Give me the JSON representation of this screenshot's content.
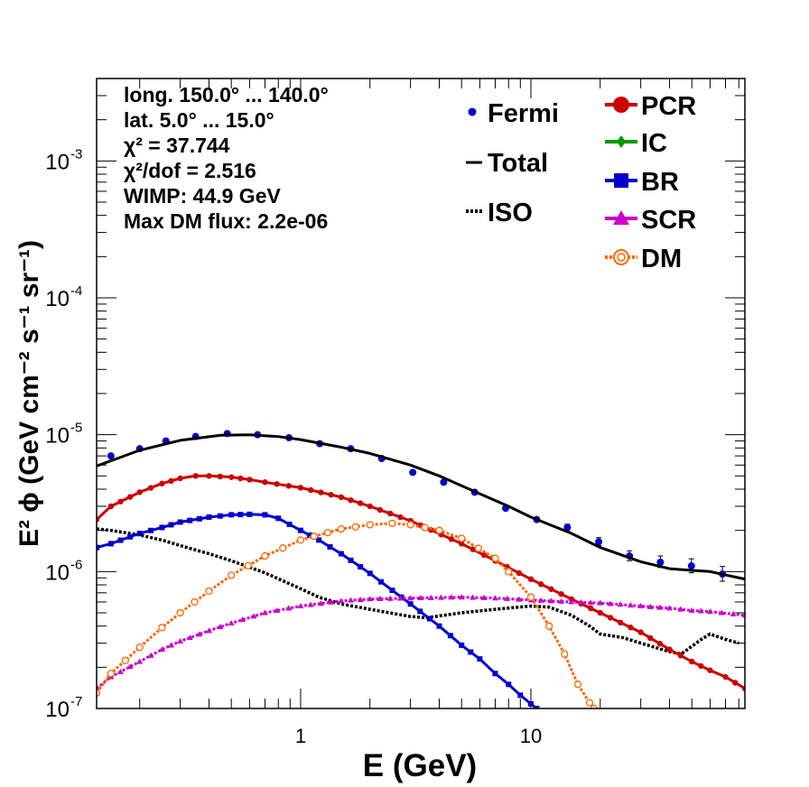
{
  "chart_data": {
    "type": "scatter",
    "x_scale": "log",
    "y_scale": "log",
    "xlim": [
      0.13,
      85
    ],
    "ylim": [
      1e-07,
      0.004
    ],
    "xlabel": "E (GeV)",
    "ylabel": "E² ϕ (GeV cm⁻² s⁻¹ sr⁻¹)",
    "x_ticks": [
      {
        "value": 1,
        "label": "1"
      },
      {
        "value": 10,
        "label": "10"
      }
    ],
    "y_ticks": [
      {
        "value": 1e-07,
        "mant": "10",
        "exp": "-7"
      },
      {
        "value": 1e-06,
        "mant": "10",
        "exp": "-6"
      },
      {
        "value": 1e-05,
        "mant": "10",
        "exp": "-5"
      },
      {
        "value": 0.0001,
        "mant": "10",
        "exp": "-4"
      },
      {
        "value": 0.001,
        "mant": "10",
        "exp": "-3"
      }
    ],
    "info": [
      "long. 150.0° ... 140.0°",
      "lat. 5.0° ... 15.0°",
      "χ² = 37.744",
      "χ²/dof = 2.516",
      "WIMP: 44.9 GeV",
      "Max DM flux: 2.2e-06"
    ],
    "legend": {
      "left": [
        {
          "label": "Fermi",
          "kind": "fermi"
        },
        {
          "label": "Total",
          "kind": "solid"
        },
        {
          "label": "ISO",
          "kind": "dotted"
        }
      ],
      "right": [
        {
          "label": "PCR",
          "kind": "circle",
          "color": "#cc0000"
        },
        {
          "label": "IC",
          "kind": "diamond",
          "color": "#009900"
        },
        {
          "label": "BR",
          "kind": "square",
          "color": "#0000cc"
        },
        {
          "label": "SCR",
          "kind": "triangle",
          "color": "#cc00cc"
        },
        {
          "label": "DM",
          "kind": "opencircle",
          "color": "#ff6600"
        }
      ]
    },
    "series": [
      {
        "name": "Fermi",
        "kind": "points",
        "color": "#0000cc",
        "x": [
          0.15,
          0.2,
          0.26,
          0.35,
          0.48,
          0.65,
          0.89,
          1.21,
          1.65,
          2.25,
          3.07,
          4.18,
          5.7,
          7.77,
          10.6,
          14.4,
          19.7,
          26.8,
          36.5,
          49.8,
          67.9
        ],
        "y": [
          7e-06,
          7.9e-06,
          9e-06,
          9.7e-06,
          1.02e-05,
          1e-05,
          9.5e-06,
          8.6e-06,
          7.9e-06,
          6.7e-06,
          5.3e-06,
          4.5e-06,
          3.8e-06,
          2.9e-06,
          2.4e-06,
          2.1e-06,
          1.65e-06,
          1.3e-06,
          1.17e-06,
          1.1e-06,
          9.6e-07
        ],
        "err_lo": [
          7e-06,
          7.9e-06,
          9e-06,
          9.7e-06,
          1.02e-05,
          1e-05,
          9.5e-06,
          8.6e-06,
          7.9e-06,
          6.7e-06,
          5.3e-06,
          4.5e-06,
          3.8e-06,
          2.83e-06,
          2.33e-06,
          1.98e-06,
          1.55e-06,
          1.2e-06,
          1.07e-06,
          9.8e-07,
          8.5e-07
        ],
        "err_hi": [
          7e-06,
          7.9e-06,
          9e-06,
          9.7e-06,
          1.02e-05,
          1e-05,
          9.5e-06,
          8.6e-06,
          7.9e-06,
          6.7e-06,
          5.3e-06,
          4.5e-06,
          3.8e-06,
          2.97e-06,
          2.47e-06,
          2.22e-06,
          1.77e-06,
          1.42e-06,
          1.3e-06,
          1.24e-06,
          1.09e-06
        ]
      },
      {
        "name": "Total",
        "kind": "solid",
        "color": "#000000",
        "x": [
          0.13,
          0.2,
          0.3,
          0.45,
          0.6,
          0.8,
          1.0,
          1.5,
          2.0,
          3.0,
          4.0,
          6.0,
          8.0,
          10.0,
          15.0,
          20.0,
          30.0,
          40.0,
          50.0,
          60.0,
          85.0
        ],
        "y": [
          5.9e-06,
          7.7e-06,
          9.1e-06,
          9.9e-06,
          1e-05,
          9.7e-06,
          9.2e-06,
          8.1e-06,
          7.3e-06,
          6e-06,
          5e-06,
          3.7e-06,
          3e-06,
          2.5e-06,
          1.9e-06,
          1.5e-06,
          1.18e-06,
          1.05e-06,
          1.02e-06,
          1e-06,
          8.8e-07
        ]
      },
      {
        "name": "ISO",
        "kind": "dotted",
        "color": "#000000",
        "x": [
          0.13,
          0.15,
          0.2,
          0.25,
          0.3,
          0.4,
          0.5,
          0.7,
          1.0,
          1.2,
          1.5,
          2.0,
          3.0,
          3.5,
          5.0,
          7.0,
          10.0,
          12.0,
          15.0,
          18.0,
          20.0,
          25.0,
          30.0,
          40.0,
          45.0,
          55.0,
          60.0,
          70.0,
          80.0
        ],
        "y": [
          2.05e-06,
          2e-06,
          1.85e-06,
          1.7e-06,
          1.55e-06,
          1.35e-06,
          1.2e-06,
          9.8e-07,
          7.5e-07,
          6.5e-07,
          5.8e-07,
          5.3e-07,
          4.7e-07,
          4.6e-07,
          5e-07,
          5.3e-07,
          5.6e-07,
          5.5e-07,
          4.8e-07,
          4e-07,
          3.5e-07,
          3.3e-07,
          3e-07,
          2.6e-07,
          2.5e-07,
          3.2e-07,
          3.5e-07,
          3.2e-07,
          3e-07
        ]
      },
      {
        "name": "PCR",
        "kind": "circle",
        "color": "#cc0000",
        "x": [
          0.13,
          0.15,
          0.2,
          0.25,
          0.3,
          0.35,
          0.4,
          0.5,
          0.6,
          0.7,
          1.0,
          1.5,
          2.0,
          3.0,
          5.0,
          7.0,
          10.0,
          15.0,
          20.0,
          30.0,
          40.0,
          50.0,
          60.0,
          70.0,
          85.0
        ],
        "y": [
          2.4e-06,
          3e-06,
          3.8e-06,
          4.4e-06,
          4.8e-06,
          5e-06,
          5e-06,
          4.9e-06,
          4.7e-06,
          4.5e-06,
          4.1e-06,
          3.5e-06,
          3e-06,
          2.35e-06,
          1.6e-06,
          1.2e-06,
          8.8e-07,
          6.3e-07,
          5e-07,
          3.6e-07,
          2.7e-07,
          2.2e-07,
          1.9e-07,
          1.7e-07,
          1.4e-07
        ]
      },
      {
        "name": "BR",
        "kind": "square",
        "color": "#0000cc",
        "x": [
          0.13,
          0.15,
          0.2,
          0.25,
          0.3,
          0.4,
          0.5,
          0.6,
          0.7,
          0.8,
          1.0,
          1.2,
          1.5,
          2.0,
          2.5,
          3.0,
          4.0,
          5.0,
          6.0,
          7.0,
          8.0,
          9.0,
          10.0,
          10.6
        ],
        "y": [
          1.5e-06,
          1.6e-06,
          1.9e-06,
          2.1e-06,
          2.3e-06,
          2.5e-06,
          2.6e-06,
          2.62e-06,
          2.6e-06,
          2.45e-06,
          2e-06,
          1.7e-06,
          1.35e-06,
          9.7e-07,
          7.3e-07,
          5.8e-07,
          4e-07,
          2.9e-07,
          2.3e-07,
          1.8e-07,
          1.5e-07,
          1.25e-07,
          1.08e-07,
          1e-07
        ]
      },
      {
        "name": "SCR",
        "kind": "triangle",
        "color": "#cc00cc",
        "x": [
          0.13,
          0.15,
          0.2,
          0.25,
          0.3,
          0.4,
          0.5,
          0.7,
          1.0,
          1.5,
          2.0,
          3.0,
          5.0,
          7.0,
          10.0,
          15.0,
          20.0,
          30.0,
          40.0,
          50.0,
          60.0,
          85.0
        ],
        "y": [
          1.4e-07,
          1.7e-07,
          2.2e-07,
          2.7e-07,
          3.1e-07,
          3.7e-07,
          4.2e-07,
          5e-07,
          5.6e-07,
          6.1e-07,
          6.3e-07,
          6.4e-07,
          6.5e-07,
          6.4e-07,
          6.2e-07,
          6e-07,
          5.9e-07,
          5.6e-07,
          5.4e-07,
          5.2e-07,
          5.1e-07,
          4.8e-07
        ]
      },
      {
        "name": "DM",
        "kind": "opencircle",
        "color": "#ff6600",
        "x": [
          0.13,
          0.15,
          0.2,
          0.25,
          0.3,
          0.4,
          0.5,
          0.7,
          1.0,
          1.5,
          2.0,
          2.5,
          3.0,
          4.0,
          5.0,
          7.0,
          8.0,
          10.0,
          12.0,
          14.0,
          16.0,
          18.0,
          18.8
        ],
        "y": [
          1.3e-07,
          1.8e-07,
          2.8e-07,
          3.9e-07,
          5e-07,
          7.2e-07,
          9.4e-07,
          1.3e-06,
          1.7e-06,
          2.05e-06,
          2.2e-06,
          2.25e-06,
          2.2e-06,
          2e-06,
          1.75e-06,
          1.25e-06,
          1e-06,
          6.5e-07,
          4e-07,
          2.5e-07,
          1.5e-07,
          1.1e-07,
          1e-07
        ]
      }
    ]
  }
}
